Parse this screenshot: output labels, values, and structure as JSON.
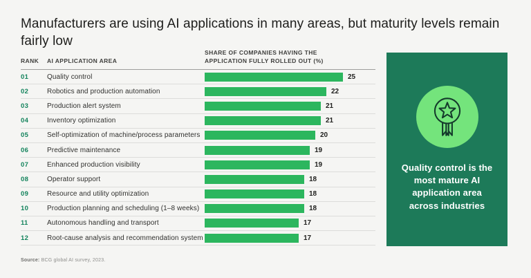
{
  "title": "Manufacturers are using AI applications in many areas, but maturity levels remain fairly low",
  "table": {
    "col_rank": "RANK",
    "col_area": "AI APPLICATION AREA",
    "col_share": "SHARE OF COMPANIES HAVING THE APPLICATION FULLY ROLLED OUT (%)"
  },
  "rows": [
    {
      "rank": "01",
      "label": "Quality control",
      "value": "25"
    },
    {
      "rank": "02",
      "label": "Robotics and production automation",
      "value": "22"
    },
    {
      "rank": "03",
      "label": "Production alert system",
      "value": "21"
    },
    {
      "rank": "04",
      "label": "Inventory optimization",
      "value": "21"
    },
    {
      "rank": "05",
      "label": "Self-optimization of machine/process parameters",
      "value": "20"
    },
    {
      "rank": "06",
      "label": "Predictive maintenance",
      "value": "19"
    },
    {
      "rank": "07",
      "label": "Enhanced production visibility",
      "value": "19"
    },
    {
      "rank": "08",
      "label": "Operator support",
      "value": "18"
    },
    {
      "rank": "09",
      "label": "Resource and utility optimization",
      "value": "18"
    },
    {
      "rank": "10",
      "label": "Production planning and scheduling (1–8 weeks)",
      "value": "18"
    },
    {
      "rank": "11",
      "label": "Autonomous handling and transport",
      "value": "17"
    },
    {
      "rank": "12",
      "label": "Root-cause analysis and recommendation system",
      "value": "17"
    }
  ],
  "chart_data": {
    "type": "bar",
    "orientation": "horizontal",
    "title": "Share of companies having the application fully rolled out (%)",
    "categories": [
      "Quality control",
      "Robotics and production automation",
      "Production alert system",
      "Inventory optimization",
      "Self-optimization of machine/process parameters",
      "Predictive maintenance",
      "Enhanced production visibility",
      "Operator support",
      "Resource and utility optimization",
      "Production planning and scheduling (1–8 weeks)",
      "Autonomous handling and transport",
      "Root-cause analysis and recommendation system"
    ],
    "values": [
      25,
      22,
      21,
      21,
      20,
      19,
      19,
      18,
      18,
      18,
      17,
      17
    ],
    "xlabel": "Share of companies (%)",
    "ylabel": "AI application area",
    "xlim": [
      0,
      25
    ],
    "grid": false,
    "legend": false,
    "bar_color": "#2cb65e"
  },
  "callout": {
    "icon": "award-medal-icon",
    "text": "Quality control is the most mature AI application area across industries",
    "panel_color": "#1d7a59",
    "circle_color": "#74e47c"
  },
  "source": {
    "label": "Source:",
    "text": " BCG global AI survey, 2023."
  },
  "colors": {
    "background": "#f5f5f3",
    "bar": "#2cb65e",
    "rank_green": "#13835c",
    "panel_green": "#1d7a59",
    "circle_green": "#74e47c"
  }
}
